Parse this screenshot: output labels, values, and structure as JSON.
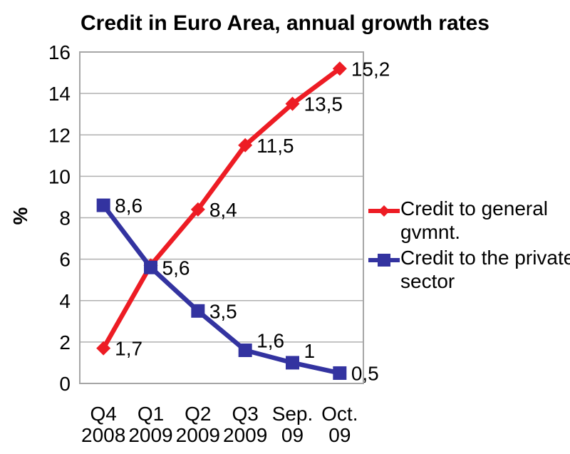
{
  "colors": {
    "background": "#ffffff",
    "text": "#000000",
    "gridline": "#b0b0b0",
    "plot_border": "#a6a6a6",
    "red_series": "#ed1c24",
    "blue_series": "#3333a0"
  },
  "chart_data": {
    "type": "line",
    "title": "Credit in Euro Area, annual growth rates",
    "xlabel": "",
    "ylabel": "%",
    "ylim": [
      0,
      16
    ],
    "yticks": [
      0,
      2,
      4,
      6,
      8,
      10,
      12,
      14,
      16
    ],
    "grid": true,
    "legend_position": "right",
    "categories": [
      [
        "Q4",
        "2008"
      ],
      [
        "Q1",
        "2009"
      ],
      [
        "Q2",
        "2009"
      ],
      [
        "Q3",
        "2009"
      ],
      [
        "Sep.",
        "09"
      ],
      [
        "Oct.",
        "09"
      ]
    ],
    "series": [
      {
        "name": "Credit to general gvmnt.",
        "legend_lines": [
          "Credit to general",
          "gvmnt."
        ],
        "color": "#ed1c24",
        "marker": "diamond",
        "values": [
          1.7,
          5.7,
          8.4,
          11.5,
          13.5,
          15.2
        ],
        "data_labels": [
          "1,7",
          "",
          "8,4",
          "11,5",
          "13,5",
          "15,2"
        ],
        "label_dy": [
          0,
          0,
          0,
          0,
          0,
          0
        ]
      },
      {
        "name": "Credit to the private sector",
        "legend_lines": [
          "Credit to the private",
          "sector"
        ],
        "color": "#3333a0",
        "marker": "square",
        "values": [
          8.6,
          5.6,
          3.5,
          1.6,
          1.0,
          0.5
        ],
        "data_labels": [
          "8,6",
          "5,6",
          "3,5",
          "1,6",
          "1",
          "0,5"
        ],
        "label_dy": [
          0,
          0,
          0,
          -14,
          -17,
          0
        ]
      }
    ]
  }
}
